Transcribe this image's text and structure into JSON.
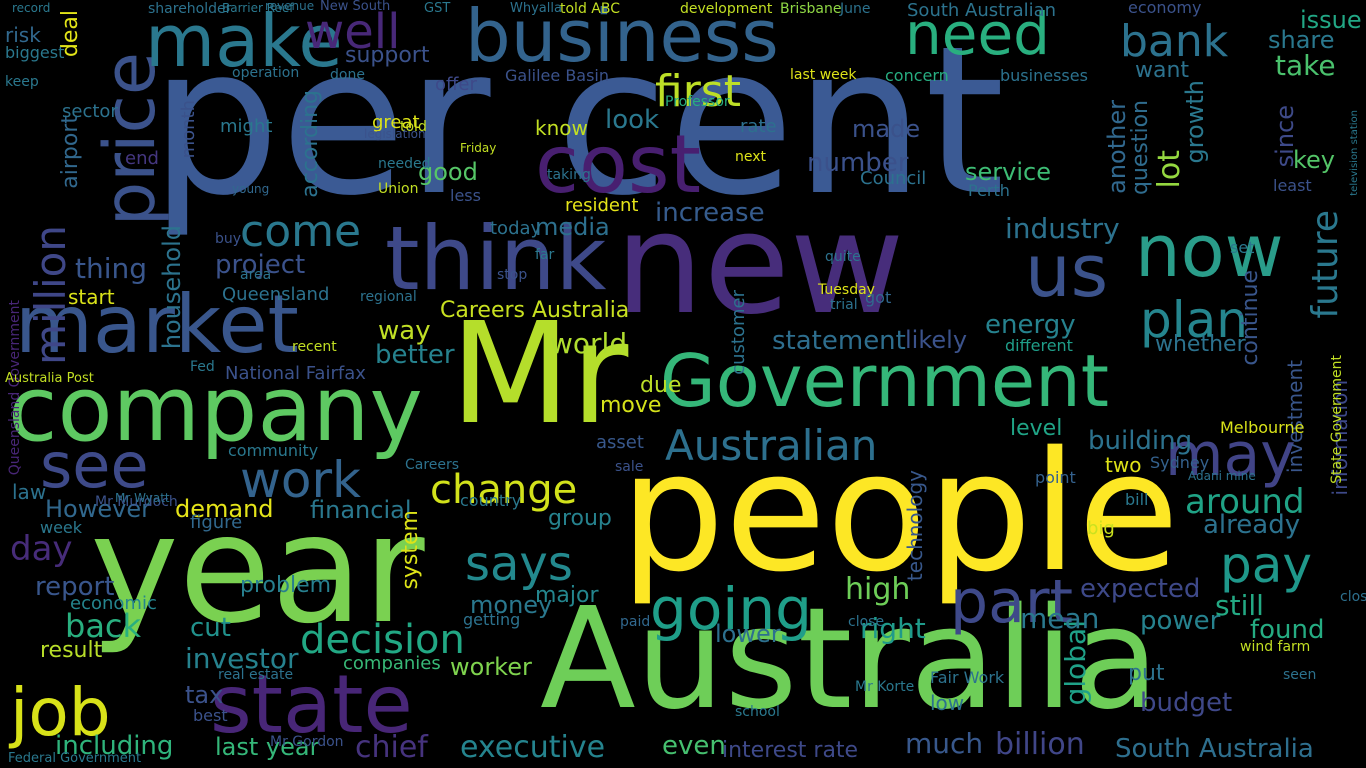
{
  "words": [
    {
      "text": "per cent",
      "color": "#3b5a94"
    },
    {
      "text": "new",
      "color": "#472d7b"
    },
    {
      "text": "people",
      "color": "#fde725"
    },
    {
      "text": "Australia",
      "color": "#6ece58"
    },
    {
      "text": "year",
      "color": "#7ad151"
    },
    {
      "text": "Mr",
      "color": "#b5de2b"
    },
    {
      "text": "Government",
      "color": "#35b779"
    },
    {
      "text": "company",
      "color": "#5ec962"
    },
    {
      "text": "think",
      "color": "#3e4989"
    },
    {
      "text": "market",
      "color": "#39568c"
    },
    {
      "text": "price",
      "color": "#3b528b"
    },
    {
      "text": "business",
      "color": "#33638d"
    },
    {
      "text": "make",
      "color": "#2a788e"
    },
    {
      "text": "state",
      "color": "#482677"
    },
    {
      "text": "job",
      "color": "#d8e219"
    },
    {
      "text": "cost",
      "color": "#481f70"
    },
    {
      "text": "need",
      "color": "#29af7f"
    },
    {
      "text": "now",
      "color": "#2a9d8a"
    },
    {
      "text": "us",
      "color": "#3b528b"
    },
    {
      "text": "see",
      "color": "#3e4a89"
    },
    {
      "text": "work",
      "color": "#33638d"
    },
    {
      "text": "going",
      "color": "#1f9e89"
    },
    {
      "text": "part",
      "color": "#3e4989"
    },
    {
      "text": "may",
      "color": "#414487"
    },
    {
      "text": "plan",
      "color": "#25858e"
    },
    {
      "text": "bank",
      "color": "#2c728e"
    },
    {
      "text": "well",
      "color": "#482878"
    },
    {
      "text": "Australian",
      "color": "#2d708e"
    },
    {
      "text": "change",
      "color": "#d2e21b"
    },
    {
      "text": "decision",
      "color": "#22a884"
    },
    {
      "text": "says",
      "color": "#23898e"
    },
    {
      "text": "pay",
      "color": "#1f988b"
    },
    {
      "text": "first",
      "color": "#bddf26"
    },
    {
      "text": "come",
      "color": "#2a788e"
    },
    {
      "text": "million",
      "color": "#3f4788"
    },
    {
      "text": "around",
      "color": "#20a386"
    },
    {
      "text": "future",
      "color": "#2a788e"
    },
    {
      "text": "industry",
      "color": "#2c728e"
    },
    {
      "text": "investor",
      "color": "#26828e"
    },
    {
      "text": "executive",
      "color": "#25848e"
    },
    {
      "text": "including",
      "color": "#2fb47c"
    },
    {
      "text": "chief",
      "color": "#46337e"
    },
    {
      "text": "billion",
      "color": "#404688"
    },
    {
      "text": "South Australia",
      "color": "#2e6f8e"
    },
    {
      "text": "number",
      "color": "#3b518b"
    },
    {
      "text": "energy",
      "color": "#26828e"
    },
    {
      "text": "project",
      "color": "#3b528b"
    },
    {
      "text": "household",
      "color": "#2c738e"
    },
    {
      "text": "statement",
      "color": "#2e6e8e"
    },
    {
      "text": "Careers Australia",
      "color": "#c8e020"
    },
    {
      "text": "world",
      "color": "#b0dd2f"
    },
    {
      "text": "media",
      "color": "#2d708e"
    },
    {
      "text": "look",
      "color": "#2a788e"
    },
    {
      "text": "good",
      "color": "#56c667"
    },
    {
      "text": "know",
      "color": "#c2df23"
    },
    {
      "text": "increase",
      "color": "#365c8d"
    },
    {
      "text": "service",
      "color": "#3dbc74"
    },
    {
      "text": "made",
      "color": "#3b528b"
    },
    {
      "text": "building",
      "color": "#2c728e"
    },
    {
      "text": "investment",
      "color": "#39568c"
    },
    {
      "text": "global",
      "color": "#1fa188"
    },
    {
      "text": "expected",
      "color": "#3e4989"
    },
    {
      "text": "budget",
      "color": "#3f4889"
    },
    {
      "text": "mean",
      "color": "#2a788e"
    },
    {
      "text": "power",
      "color": "#26828e"
    },
    {
      "text": "found",
      "color": "#25ac82"
    },
    {
      "text": "still",
      "color": "#23a983"
    },
    {
      "text": "already",
      "color": "#2c728e"
    },
    {
      "text": "demand",
      "color": "#e5e419"
    },
    {
      "text": "financial",
      "color": "#2a788e"
    },
    {
      "text": "However",
      "color": "#31688e"
    },
    {
      "text": "day",
      "color": "#472c7a"
    },
    {
      "text": "back",
      "color": "#29af7f"
    },
    {
      "text": "report",
      "color": "#39568c"
    },
    {
      "text": "economic",
      "color": "#25858e"
    },
    {
      "text": "result",
      "color": "#b8de29"
    },
    {
      "text": "cut",
      "color": "#21918c"
    },
    {
      "text": "money",
      "color": "#2a788e"
    },
    {
      "text": "worker",
      "color": "#7fd34e"
    },
    {
      "text": "companies",
      "color": "#38b977"
    },
    {
      "text": "tax",
      "color": "#3b528b"
    },
    {
      "text": "last year",
      "color": "#35b779"
    },
    {
      "text": "even",
      "color": "#46c06f"
    },
    {
      "text": "much",
      "color": "#38588c"
    },
    {
      "text": "interest rate",
      "color": "#3e4989"
    },
    {
      "text": "right",
      "color": "#1f9a8a"
    },
    {
      "text": "lower",
      "color": "#2d708e"
    },
    {
      "text": "high",
      "color": "#6ece58"
    },
    {
      "text": "major",
      "color": "#24868e"
    },
    {
      "text": "problem",
      "color": "#277f8e"
    },
    {
      "text": "move",
      "color": "#d5e21a"
    },
    {
      "text": "due",
      "color": "#bade28"
    },
    {
      "text": "way",
      "color": "#c0df25"
    },
    {
      "text": "thing",
      "color": "#39568c"
    },
    {
      "text": "start",
      "color": "#dae319"
    },
    {
      "text": "better",
      "color": "#26828e"
    },
    {
      "text": "National Fairfax",
      "color": "#3b528b"
    },
    {
      "text": "Queensland",
      "color": "#2c728e"
    },
    {
      "text": "according",
      "color": "#2c728e"
    },
    {
      "text": "support",
      "color": "#3b528b"
    },
    {
      "text": "growth",
      "color": "#2a788e"
    },
    {
      "text": "lot",
      "color": "#95d840"
    },
    {
      "text": "rate",
      "color": "#2d708e"
    },
    {
      "text": "Council",
      "color": "#2c728e"
    },
    {
      "text": "take",
      "color": "#4ac16d"
    },
    {
      "text": "share",
      "color": "#2a788e"
    },
    {
      "text": "want",
      "color": "#2c728e"
    },
    {
      "text": "issue",
      "color": "#22a785"
    },
    {
      "text": "economy",
      "color": "#3b528b"
    },
    {
      "text": "South Australian",
      "color": "#2c738e"
    },
    {
      "text": "Brisbane",
      "color": "#8fd744"
    },
    {
      "text": "development",
      "color": "#c2df23"
    },
    {
      "text": "deal",
      "color": "#e2e418"
    },
    {
      "text": "risk",
      "color": "#31688e"
    },
    {
      "text": "biggest",
      "color": "#2a788e"
    },
    {
      "text": "shareholder",
      "color": "#2c728e"
    },
    {
      "text": "month",
      "color": "#3b528b"
    },
    {
      "text": "since",
      "color": "#3e4a89"
    },
    {
      "text": "key",
      "color": "#54c568"
    },
    {
      "text": "least",
      "color": "#3b528b"
    },
    {
      "text": "another",
      "color": "#31688e"
    },
    {
      "text": "question",
      "color": "#2f6c8e"
    },
    {
      "text": "continue",
      "color": "#39568c"
    },
    {
      "text": "whether",
      "color": "#2c728e"
    },
    {
      "text": "likely",
      "color": "#3b528b"
    },
    {
      "text": "level",
      "color": "#20a486"
    },
    {
      "text": "two",
      "color": "#dfe318"
    },
    {
      "text": "Melbourne",
      "color": "#d8e219"
    },
    {
      "text": "big",
      "color": "#cae11f"
    },
    {
      "text": "put",
      "color": "#2c728e"
    },
    {
      "text": "system",
      "color": "#dde318"
    },
    {
      "text": "group",
      "color": "#26828e"
    },
    {
      "text": "airport",
      "color": "#31688e"
    },
    {
      "text": "sector",
      "color": "#2c728e"
    },
    {
      "text": "might",
      "color": "#2a788e"
    },
    {
      "text": "offer",
      "color": "#3e4989"
    },
    {
      "text": "resident",
      "color": "#e5e419"
    },
    {
      "text": "community",
      "color": "#2a788e"
    },
    {
      "text": "asset",
      "color": "#38588c"
    },
    {
      "text": "figure",
      "color": "#31688e"
    },
    {
      "text": "different",
      "color": "#1f9e89"
    },
    {
      "text": "Sydney",
      "color": "#34618d"
    },
    {
      "text": "Perth",
      "color": "#2c728e"
    },
    {
      "text": "less",
      "color": "#3b528b"
    },
    {
      "text": "today",
      "color": "#2c728e"
    },
    {
      "text": "set",
      "color": "#2a788e"
    },
    {
      "text": "point",
      "color": "#34618d"
    },
    {
      "text": "customer",
      "color": "#2c728e"
    },
    {
      "text": "technology",
      "color": "#38588c"
    },
    {
      "text": "information",
      "color": "#3e4989"
    },
    {
      "text": "Fair Work",
      "color": "#2c728e"
    },
    {
      "text": "closed",
      "color": "#2d708e"
    },
    {
      "text": "businesses",
      "color": "#2c728e"
    },
    {
      "text": "last week",
      "color": "#dde318"
    },
    {
      "text": "concern",
      "color": "#27ad81"
    },
    {
      "text": "Galilee Basin",
      "color": "#3b528b"
    },
    {
      "text": "operation",
      "color": "#2c728e"
    },
    {
      "text": "Professor",
      "color": "#27ad81"
    },
    {
      "text": "done",
      "color": "#2c728e"
    },
    {
      "text": "keep",
      "color": "#2a788e"
    },
    {
      "text": "end",
      "color": "#453781"
    },
    {
      "text": "told",
      "color": "#c2df23"
    },
    {
      "text": "country",
      "color": "#2a788e"
    },
    {
      "text": "sale",
      "color": "#3b528b"
    },
    {
      "text": "getting",
      "color": "#2c728e"
    },
    {
      "text": "paid",
      "color": "#31688e"
    },
    {
      "text": "law",
      "color": "#2c728e"
    },
    {
      "text": "week",
      "color": "#2a788e"
    },
    {
      "text": "best",
      "color": "#3b528b"
    },
    {
      "text": "low",
      "color": "#2c728e"
    },
    {
      "text": "Mr Gordon",
      "color": "#3b528b"
    },
    {
      "text": "real estate",
      "color": "#2c728e"
    },
    {
      "text": "school",
      "color": "#2a788e"
    },
    {
      "text": "seen",
      "color": "#2c728e"
    },
    {
      "text": "Tuesday",
      "color": "#dde318"
    },
    {
      "text": "got",
      "color": "#31688e"
    },
    {
      "text": "trial",
      "color": "#2c728e"
    },
    {
      "text": "Mr Korte",
      "color": "#2a788e"
    },
    {
      "text": "close",
      "color": "#2c728e"
    },
    {
      "text": "bill",
      "color": "#2a788e"
    },
    {
      "text": "Mr Murdoch",
      "color": "#3b528b"
    },
    {
      "text": "Queensland Government",
      "color": "#482677"
    },
    {
      "text": "Careers",
      "color": "#2c728e"
    },
    {
      "text": "recent",
      "color": "#c2df23"
    },
    {
      "text": "Fed",
      "color": "#2a788e"
    },
    {
      "text": "buy",
      "color": "#3b528b"
    },
    {
      "text": "area",
      "color": "#2c728e"
    },
    {
      "text": "young",
      "color": "#31688e"
    },
    {
      "text": "great",
      "color": "#dde318"
    },
    {
      "text": "legislation",
      "color": "#3b528b"
    },
    {
      "text": "Friday",
      "color": "#c2df23"
    },
    {
      "text": "taking",
      "color": "#2c728e"
    },
    {
      "text": "needed",
      "color": "#2a788e"
    },
    {
      "text": "Union",
      "color": "#c2df23"
    },
    {
      "text": "next",
      "color": "#dde318"
    },
    {
      "text": "quite",
      "color": "#2c728e"
    },
    {
      "text": "far",
      "color": "#2a788e"
    },
    {
      "text": "stop",
      "color": "#3b528b"
    },
    {
      "text": "regional",
      "color": "#2c728e"
    },
    {
      "text": "State Government",
      "color": "#c2df23"
    },
    {
      "text": "television station",
      "color": "#2a788e"
    },
    {
      "text": "Adani mine",
      "color": "#2c728e"
    },
    {
      "text": "wind farm",
      "color": "#c2df23"
    },
    {
      "text": "Federal Government",
      "color": "#2a788e"
    },
    {
      "text": "Australia Post",
      "color": "#c2df23"
    },
    {
      "text": "Mr Wyatt",
      "color": "#2c728e"
    },
    {
      "text": "GST",
      "color": "#2a788e"
    },
    {
      "text": "Whyalla",
      "color": "#2c728e"
    },
    {
      "text": "told ABC",
      "color": "#c2df23"
    },
    {
      "text": "Barrier Reef",
      "color": "#2a788e"
    },
    {
      "text": "June",
      "color": "#2c728e"
    },
    {
      "text": "record",
      "color": "#2a788e"
    },
    {
      "text": "revenue",
      "color": "#2c728e"
    },
    {
      "text": "New South",
      "color": "#3b528b"
    }
  ]
}
